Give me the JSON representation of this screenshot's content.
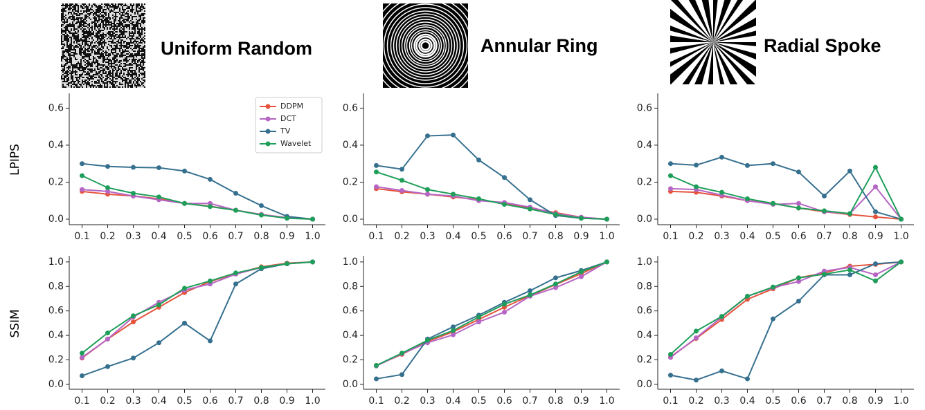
{
  "columns": [
    {
      "title": "Uniform Random"
    },
    {
      "title": "Annular Ring"
    },
    {
      "title": "Radial Spoke"
    }
  ],
  "row_labels": [
    "LPIPS",
    "SSIM"
  ],
  "chart_data": [
    {
      "type": "line",
      "legend": "upper right",
      "xlim": [
        0.05,
        1.05
      ],
      "ylim": [
        -0.03,
        0.68
      ],
      "xticks": [
        0.1,
        0.2,
        0.3,
        0.4,
        0.5,
        0.6,
        0.7,
        0.8,
        0.9,
        {
          "value": 1,
          "label": "1.0"
        }
      ],
      "yticks": [
        {
          "value": 0,
          "label": "0.0"
        },
        0.2,
        0.4,
        0.6
      ],
      "x": [
        0.1,
        0.2,
        0.3,
        0.4,
        0.5,
        0.6,
        0.7,
        0.8,
        0.9,
        1.0
      ],
      "series": [
        {
          "name": "DDPM",
          "color": "#e5533d",
          "values": [
            0.15,
            0.135,
            0.125,
            0.11,
            0.085,
            0.07,
            0.048,
            0.025,
            0.008,
            0
          ]
        },
        {
          "name": "DCT",
          "color": "#b565c4",
          "values": [
            0.16,
            0.15,
            0.125,
            0.105,
            0.085,
            0.085,
            0.048,
            0.025,
            0.008,
            0
          ]
        },
        {
          "name": "TV",
          "color": "#36708f",
          "values": [
            0.3,
            0.285,
            0.28,
            0.278,
            0.26,
            0.215,
            0.14,
            0.073,
            0.015,
            0
          ]
        },
        {
          "name": "Wavelet",
          "color": "#1f9e5a",
          "values": [
            0.235,
            0.17,
            0.14,
            0.12,
            0.085,
            0.068,
            0.048,
            0.022,
            0.005,
            0
          ]
        }
      ]
    },
    {
      "type": "line",
      "xlim": [
        0.05,
        1.05
      ],
      "ylim": [
        -0.03,
        0.68
      ],
      "xticks": [
        0.1,
        0.2,
        0.3,
        0.4,
        0.5,
        0.6,
        0.7,
        0.8,
        0.9,
        {
          "value": 1,
          "label": "1.0"
        }
      ],
      "yticks": [
        {
          "value": 0,
          "label": "0.0"
        },
        0.2,
        0.4,
        0.6
      ],
      "x": [
        0.1,
        0.2,
        0.3,
        0.4,
        0.5,
        0.6,
        0.7,
        0.8,
        0.9,
        1.0
      ],
      "series": [
        {
          "color": "#e5533d",
          "values": [
            0.165,
            0.148,
            0.135,
            0.12,
            0.105,
            0.085,
            0.06,
            0.035,
            0.01,
            0
          ]
        },
        {
          "color": "#b565c4",
          "values": [
            0.175,
            0.155,
            0.135,
            0.125,
            0.1,
            0.09,
            0.065,
            0.03,
            0.01,
            0
          ]
        },
        {
          "color": "#36708f",
          "values": [
            0.29,
            0.27,
            0.45,
            0.455,
            0.32,
            0.225,
            0.105,
            0.02,
            0.005,
            0
          ]
        },
        {
          "color": "#1f9e5a",
          "values": [
            0.255,
            0.21,
            0.16,
            0.135,
            0.11,
            0.08,
            0.055,
            0.025,
            0.005,
            0
          ]
        }
      ]
    },
    {
      "type": "line",
      "xlim": [
        0.05,
        1.05
      ],
      "ylim": [
        -0.03,
        0.68
      ],
      "xticks": [
        0.1,
        0.2,
        0.3,
        0.4,
        0.5,
        0.6,
        0.7,
        0.8,
        0.9,
        {
          "value": 1,
          "label": "1.0"
        }
      ],
      "yticks": [
        {
          "value": 0,
          "label": "0.0"
        },
        0.2,
        0.4,
        0.6
      ],
      "x": [
        0.1,
        0.2,
        0.3,
        0.4,
        0.5,
        0.6,
        0.7,
        0.8,
        0.9,
        1.0
      ],
      "series": [
        {
          "color": "#e5533d",
          "values": [
            0.15,
            0.145,
            0.125,
            0.1,
            0.085,
            0.06,
            0.04,
            0.025,
            0.012,
            0
          ]
        },
        {
          "color": "#b565c4",
          "values": [
            0.165,
            0.16,
            0.13,
            0.1,
            0.08,
            0.085,
            0.04,
            0.03,
            0.175,
            0
          ]
        },
        {
          "color": "#36708f",
          "values": [
            0.3,
            0.292,
            0.335,
            0.29,
            0.3,
            0.255,
            0.125,
            0.26,
            0.04,
            0
          ]
        },
        {
          "color": "#1f9e5a",
          "values": [
            0.235,
            0.175,
            0.145,
            0.11,
            0.085,
            0.06,
            0.045,
            0.03,
            0.28,
            0
          ]
        }
      ]
    },
    {
      "type": "line",
      "xlim": [
        0.05,
        1.05
      ],
      "ylim": [
        -0.04,
        1.05
      ],
      "xticks": [
        0.1,
        0.2,
        0.3,
        0.4,
        0.5,
        0.6,
        0.7,
        0.8,
        0.9,
        {
          "value": 1,
          "label": "1.0"
        }
      ],
      "yticks": [
        {
          "value": 0,
          "label": "0.0"
        },
        0.2,
        0.4,
        0.6,
        0.8,
        {
          "value": 1,
          "label": "1.0"
        }
      ],
      "x": [
        0.1,
        0.2,
        0.3,
        0.4,
        0.5,
        0.6,
        0.7,
        0.8,
        0.9,
        1.0
      ],
      "series": [
        {
          "color": "#e5533d",
          "values": [
            0.215,
            0.37,
            0.51,
            0.63,
            0.75,
            0.84,
            0.905,
            0.96,
            0.99,
            1
          ]
        },
        {
          "color": "#b565c4",
          "values": [
            0.22,
            0.37,
            0.55,
            0.67,
            0.77,
            0.82,
            0.9,
            0.955,
            0.985,
            1
          ]
        },
        {
          "color": "#36708f",
          "values": [
            0.07,
            0.145,
            0.215,
            0.34,
            0.5,
            0.355,
            0.82,
            0.945,
            0.985,
            1
          ]
        },
        {
          "color": "#1f9e5a",
          "values": [
            0.255,
            0.42,
            0.56,
            0.65,
            0.785,
            0.845,
            0.91,
            0.955,
            0.985,
            1
          ]
        }
      ]
    },
    {
      "type": "line",
      "xlim": [
        0.05,
        1.05
      ],
      "ylim": [
        -0.04,
        1.05
      ],
      "xticks": [
        0.1,
        0.2,
        0.3,
        0.4,
        0.5,
        0.6,
        0.7,
        0.8,
        0.9,
        {
          "value": 1,
          "label": "1.0"
        }
      ],
      "yticks": [
        {
          "value": 0,
          "label": "0.0"
        },
        0.2,
        0.4,
        0.6,
        0.8,
        {
          "value": 1,
          "label": "1.0"
        }
      ],
      "x": [
        0.1,
        0.2,
        0.3,
        0.4,
        0.5,
        0.6,
        0.7,
        0.8,
        0.9,
        1.0
      ],
      "series": [
        {
          "color": "#e5533d",
          "values": [
            0.155,
            0.245,
            0.35,
            0.43,
            0.53,
            0.63,
            0.725,
            0.815,
            0.905,
            1
          ]
        },
        {
          "color": "#b565c4",
          "values": [
            0.15,
            0.25,
            0.34,
            0.405,
            0.51,
            0.59,
            0.72,
            0.79,
            0.88,
            1
          ]
        },
        {
          "color": "#36708f",
          "values": [
            0.045,
            0.08,
            0.37,
            0.47,
            0.565,
            0.67,
            0.765,
            0.87,
            0.93,
            1
          ]
        },
        {
          "color": "#1f9e5a",
          "values": [
            0.155,
            0.255,
            0.36,
            0.44,
            0.55,
            0.655,
            0.73,
            0.82,
            0.92,
            1
          ]
        }
      ]
    },
    {
      "type": "line",
      "xlim": [
        0.05,
        1.05
      ],
      "ylim": [
        -0.04,
        1.05
      ],
      "xticks": [
        0.1,
        0.2,
        0.3,
        0.4,
        0.5,
        0.6,
        0.7,
        0.8,
        0.9,
        {
          "value": 1,
          "label": "1.0"
        }
      ],
      "yticks": [
        {
          "value": 0,
          "label": "0.0"
        },
        0.2,
        0.4,
        0.6,
        0.8,
        {
          "value": 1,
          "label": "1.0"
        }
      ],
      "x": [
        0.1,
        0.2,
        0.3,
        0.4,
        0.5,
        0.6,
        0.7,
        0.8,
        0.9,
        1.0
      ],
      "series": [
        {
          "color": "#e5533d",
          "values": [
            0.225,
            0.375,
            0.53,
            0.695,
            0.78,
            0.87,
            0.91,
            0.965,
            0.98,
            1
          ]
        },
        {
          "color": "#b565c4",
          "values": [
            0.22,
            0.38,
            0.55,
            0.72,
            0.79,
            0.84,
            0.925,
            0.955,
            0.895,
            1
          ]
        },
        {
          "color": "#36708f",
          "values": [
            0.075,
            0.035,
            0.11,
            0.045,
            0.535,
            0.68,
            0.895,
            0.895,
            0.985,
            1
          ]
        },
        {
          "color": "#1f9e5a",
          "values": [
            0.245,
            0.435,
            0.555,
            0.72,
            0.795,
            0.87,
            0.9,
            0.935,
            0.845,
            1
          ]
        }
      ]
    }
  ]
}
